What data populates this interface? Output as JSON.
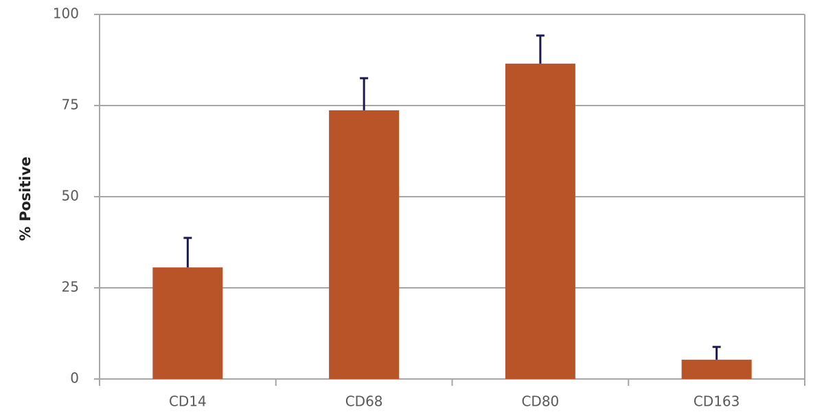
{
  "chart_data": {
    "type": "bar",
    "y_label": "% Positive",
    "categories": [
      "CD14",
      "CD68",
      "CD80",
      "CD163"
    ],
    "values": [
      30.6,
      73.7,
      86.5,
      5.3
    ],
    "errors": [
      8.1,
      8.8,
      7.7,
      3.5
    ],
    "color": "#b85428",
    "error_color": "#1c1a4e",
    "ylim": [
      0,
      100
    ],
    "yticks": [
      0,
      25,
      50,
      75,
      100
    ],
    "grid": true
  }
}
